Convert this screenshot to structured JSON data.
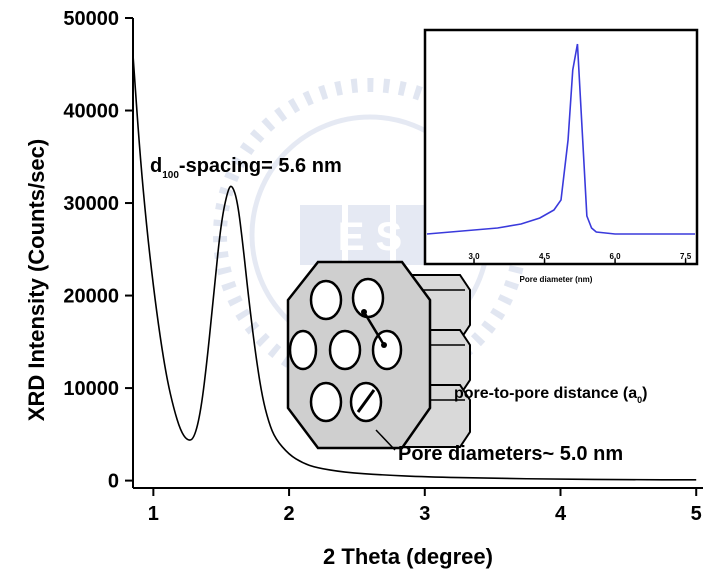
{
  "chart_data": [
    {
      "type": "line",
      "title": "",
      "xlabel": "2 Theta (degree)",
      "ylabel": "XRD Intensity (Counts/sec)",
      "xlim": [
        0.85,
        5.05
      ],
      "ylim": [
        -800,
        50000
      ],
      "xticks": [
        1,
        2,
        3,
        4,
        5
      ],
      "xtick_labels": [
        "1",
        "2",
        "3",
        "4",
        "5"
      ],
      "yticks": [
        0,
        10000,
        20000,
        30000,
        40000,
        50000
      ],
      "ytick_labels": [
        "0",
        "10000",
        "20000",
        "30000",
        "40000",
        "50000"
      ],
      "grid": false,
      "series": [
        {
          "color": "#000000",
          "x": [
            0.85,
            0.9,
            0.95,
            1.0,
            1.05,
            1.1,
            1.15,
            1.2,
            1.25,
            1.3,
            1.35,
            1.4,
            1.45,
            1.5,
            1.55,
            1.58,
            1.62,
            1.66,
            1.7,
            1.75,
            1.8,
            1.85,
            1.9,
            2.0,
            2.1,
            2.2,
            2.4,
            2.7,
            3.0,
            3.5,
            4.0,
            4.5,
            5.0
          ],
          "y": [
            46000,
            35500,
            27500,
            21000,
            15500,
            11000,
            7800,
            5400,
            4300,
            4500,
            7500,
            13500,
            21000,
            28000,
            31500,
            32000,
            30200,
            25500,
            20000,
            14000,
            9200,
            6300,
            4500,
            2800,
            1900,
            1400,
            900,
            600,
            400,
            250,
            150,
            100,
            80
          ]
        }
      ],
      "annotations": {
        "spacing": {
          "d": "d",
          "subscript": "100",
          "text": "-spacing= 5.6 nm"
        },
        "pore_distance": {
          "text": "pore-to-pore distance (a",
          "subscript": "0",
          "suffix": ")"
        },
        "pore_diameter": "Pore diameters~ 5.0 nm"
      }
    },
    {
      "type": "line",
      "title": "",
      "xlabel": "Pore diameter (nm)",
      "ylabel": "",
      "xlim": [
        2.0,
        7.7
      ],
      "ylim": [
        0,
        1
      ],
      "xticks": [
        3,
        4.5,
        6,
        7.5
      ],
      "xtick_labels": [
        "3.0",
        "4.5",
        "6.0",
        "7.5"
      ],
      "grid": false,
      "series": [
        {
          "color": "#3a3adc",
          "x": [
            2.0,
            2.5,
            3.0,
            3.5,
            4.0,
            4.4,
            4.7,
            4.85,
            5.0,
            5.1,
            5.2,
            5.3,
            5.4,
            5.5,
            5.6,
            6.0,
            6.5,
            7.0,
            7.5,
            7.7
          ],
          "y": [
            0.03,
            0.04,
            0.05,
            0.06,
            0.08,
            0.11,
            0.15,
            0.2,
            0.5,
            0.85,
            0.98,
            0.55,
            0.12,
            0.06,
            0.04,
            0.03,
            0.03,
            0.03,
            0.03,
            0.03
          ]
        }
      ]
    }
  ],
  "watermark": {
    "text": "E S"
  }
}
